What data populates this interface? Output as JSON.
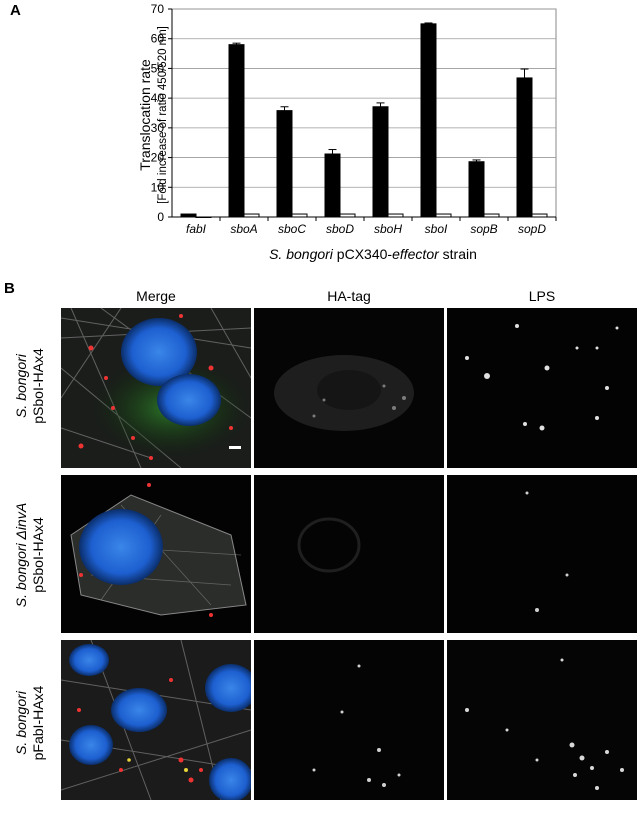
{
  "panel_a_letter": "A",
  "panel_b_letter": "B",
  "chart_data": {
    "type": "bar",
    "ylabel": "Translocation rate",
    "ylabel_sub": "[Fold increase of ratio 450/520 nm]",
    "xlabel_parts": [
      "S. bongori",
      " pCX340-",
      "effector",
      " strain"
    ],
    "ylim": [
      0,
      70
    ],
    "yticks": [
      0,
      10,
      20,
      30,
      40,
      50,
      60,
      70
    ],
    "categories": [
      "fabI",
      "sboA",
      "sboC",
      "sboD",
      "sboH",
      "sboI",
      "sopB",
      "sopD"
    ],
    "series": [
      {
        "values": [
          1,
          58,
          35.8,
          21.2,
          37.1,
          65,
          18.6,
          46.8
        ],
        "errors": [
          0,
          0.5,
          1.3,
          1.5,
          1.3,
          0.3,
          0.6,
          3.0
        ],
        "color": "#000000"
      },
      {
        "values": [
          0,
          1,
          1,
          1,
          1,
          1,
          1,
          1
        ],
        "errors": [
          0,
          0,
          0,
          0,
          0,
          0,
          0,
          0
        ],
        "color": "#ffffff"
      }
    ],
    "grid": true
  },
  "panel_b": {
    "columns": [
      "Merge",
      "HA-tag",
      "LPS"
    ],
    "rows": [
      {
        "line1_parts": [
          "S. bongori"
        ],
        "line2": "pSboI-HAx4"
      },
      {
        "line1_parts": [
          "S. bongori ",
          "ΔinvA"
        ],
        "line2": "pSboI-HAx4"
      },
      {
        "line1_parts": [
          "S. bongori"
        ],
        "line2": "pFabI-HAx4"
      }
    ]
  }
}
